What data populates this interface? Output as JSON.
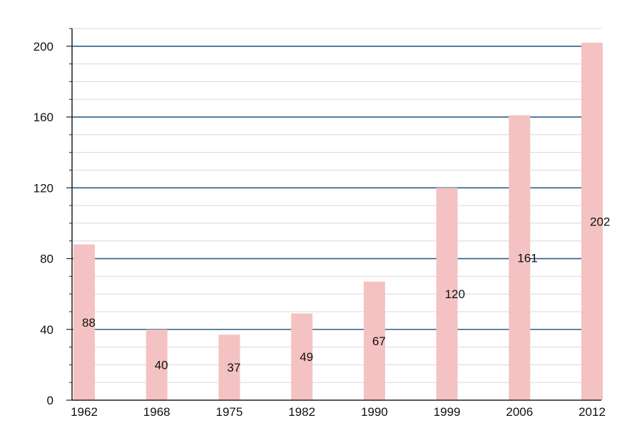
{
  "chart_data": {
    "type": "bar",
    "title": "",
    "xlabel": "",
    "ylabel": "",
    "categories": [
      "1962",
      "1968",
      "1975",
      "1982",
      "1990",
      "1999",
      "2006",
      "2012"
    ],
    "values": [
      88,
      40,
      37,
      49,
      67,
      120,
      161,
      202
    ],
    "data_labels": [
      "88",
      "40",
      "37",
      "49",
      "67",
      "120",
      "161",
      "202"
    ],
    "ylim": [
      0,
      210
    ],
    "yticks": [
      0,
      40,
      80,
      120,
      160,
      200
    ],
    "ytick_labels": [
      "0",
      "40",
      "80",
      "120",
      "160",
      "200"
    ],
    "minor_grid_step": 10,
    "grid": true,
    "legend": "none",
    "colors": {
      "bar": "#f4c2c2",
      "major_grid": "#2a5f8a",
      "minor_grid": "#d8d8d8",
      "axis": "#222222"
    }
  }
}
